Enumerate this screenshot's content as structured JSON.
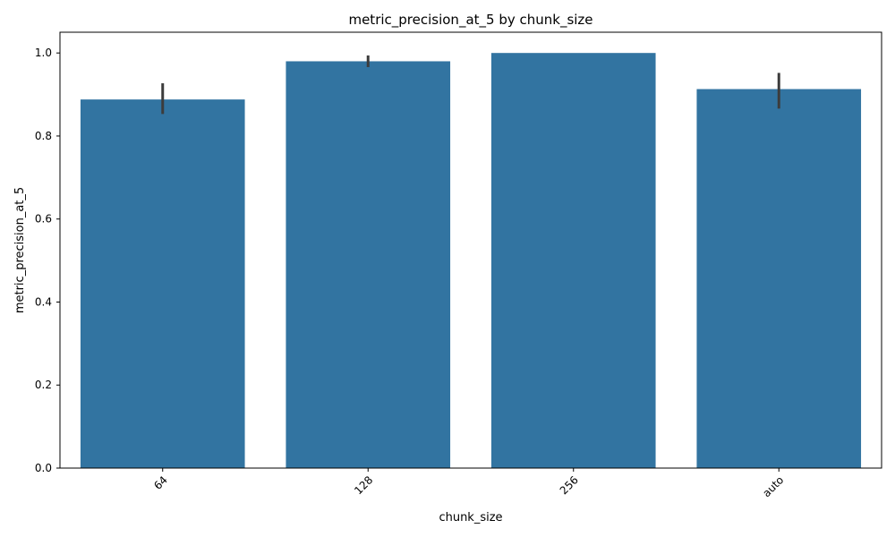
{
  "chart_data": {
    "type": "bar",
    "title": "metric_precision_at_5 by chunk_size",
    "xlabel": "chunk_size",
    "ylabel": "metric_precision_at_5",
    "categories": [
      "64",
      "128",
      "256",
      "auto"
    ],
    "values": [
      0.888,
      0.98,
      1.0,
      0.913
    ],
    "error_bars": [
      {
        "low": 0.853,
        "high": 0.927
      },
      {
        "low": 0.966,
        "high": 0.994
      },
      {
        "low": 1.0,
        "high": 1.0
      },
      {
        "low": 0.866,
        "high": 0.952
      }
    ],
    "ylim": [
      0,
      1.05
    ],
    "yticks": [
      "0.0",
      "0.2",
      "0.4",
      "0.6",
      "0.8",
      "1.0"
    ],
    "grid": false,
    "bar_color": "#3274a1",
    "error_color": "#3c3c3c"
  }
}
